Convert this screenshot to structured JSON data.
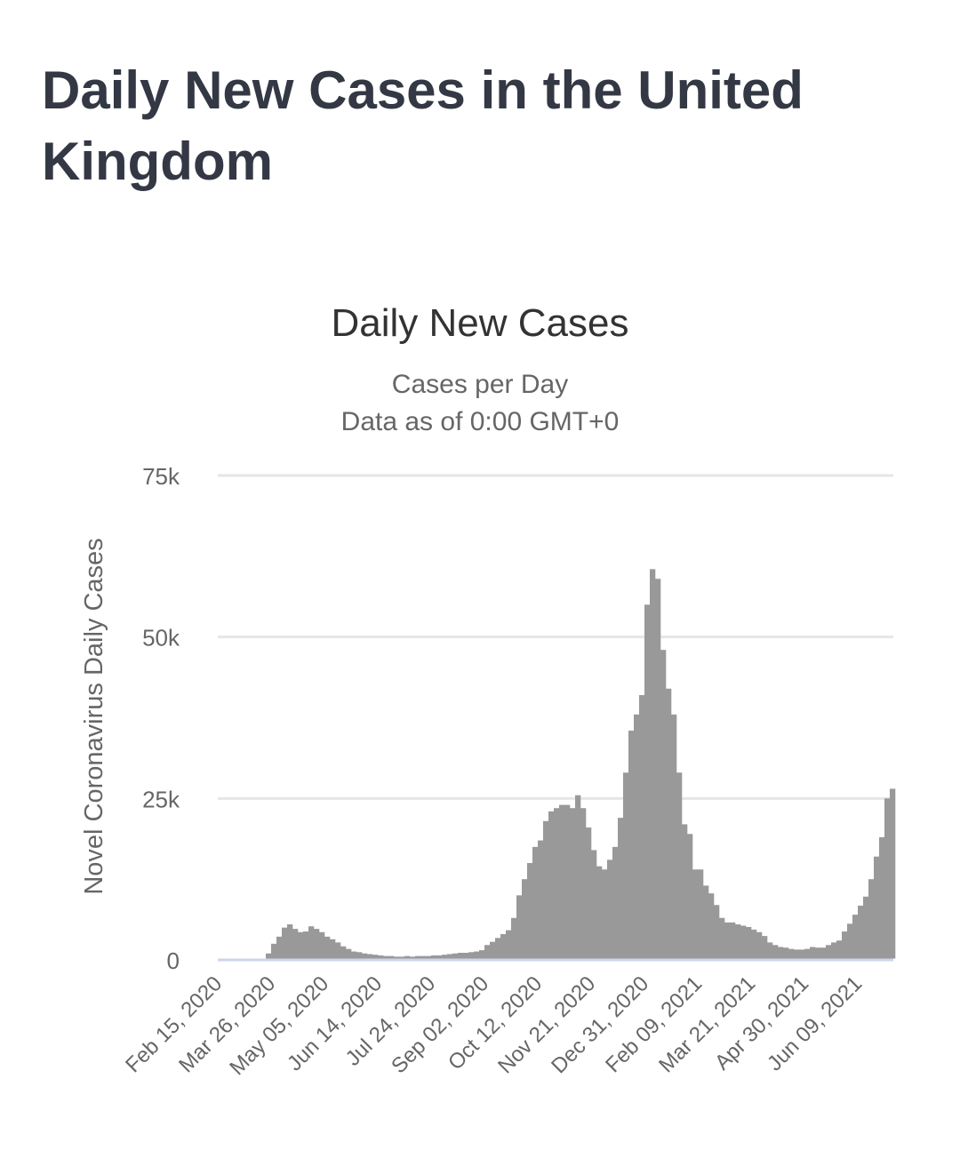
{
  "page": {
    "title": "Daily New Cases in the United Kingdom"
  },
  "chart_data": {
    "type": "bar",
    "title": "Daily New Cases",
    "subtitle_lines": [
      "Cases per Day",
      "Data as of 0:00 GMT+0"
    ],
    "ylabel": "Novel Coronavirus Daily Cases",
    "xlabel": "",
    "ylim": [
      0,
      75000
    ],
    "yticks": [
      0,
      25000,
      50000,
      75000
    ],
    "ytick_labels": [
      "0",
      "25k",
      "50k",
      "75k"
    ],
    "grid": true,
    "legend": "none",
    "bar_color": "#999999",
    "x_start_date": "2020-02-15",
    "bin_days": 4,
    "xtick_every_days": 40,
    "xtick_labels": [
      "Feb 15, 2020",
      "Mar 26, 2020",
      "May 05, 2020",
      "Jun 14, 2020",
      "Jul 24, 2020",
      "Sep 02, 2020",
      "Oct 12, 2020",
      "Nov 21, 2020",
      "Dec 31, 2020",
      "Feb 09, 2021",
      "Mar 21, 2021",
      "Apr 30, 2021",
      "Jun 09, 2021"
    ],
    "values_thousands": [
      0,
      0,
      0,
      0,
      0,
      0,
      0,
      0,
      0.2,
      1,
      2.5,
      3.6,
      5,
      5.5,
      4.8,
      4.3,
      4.4,
      5.2,
      4.8,
      4.3,
      3.6,
      3.2,
      2.7,
      2.1,
      1.7,
      1.3,
      1.2,
      1.0,
      0.9,
      0.8,
      0.7,
      0.6,
      0.6,
      0.5,
      0.5,
      0.6,
      0.5,
      0.6,
      0.6,
      0.6,
      0.7,
      0.7,
      0.8,
      0.9,
      1.0,
      1.1,
      1.1,
      1.2,
      1.3,
      1.5,
      2.3,
      2.8,
      3.4,
      4.0,
      4.6,
      6.5,
      10,
      12.5,
      15,
      17.5,
      18.5,
      21.5,
      23,
      23.5,
      24,
      24,
      23.5,
      25.5,
      23.5,
      20.5,
      17,
      14.5,
      14,
      15.5,
      17.5,
      22,
      29,
      35.5,
      38,
      41,
      55,
      60.5,
      59,
      48,
      42,
      38,
      29,
      21,
      19.5,
      14,
      14,
      11.5,
      10.3,
      8.5,
      6.5,
      5.8,
      5.8,
      5.5,
      5.3,
      5.1,
      4.7,
      4.3,
      3.7,
      2.7,
      2.3,
      2.0,
      1.9,
      1.7,
      1.6,
      1.6,
      1.7,
      2.0,
      1.9,
      1.9,
      2.3,
      2.7,
      3.0,
      4.4,
      5.6,
      7.0,
      8.4,
      9.8,
      12.5,
      16,
      19,
      25,
      26.5
    ]
  }
}
